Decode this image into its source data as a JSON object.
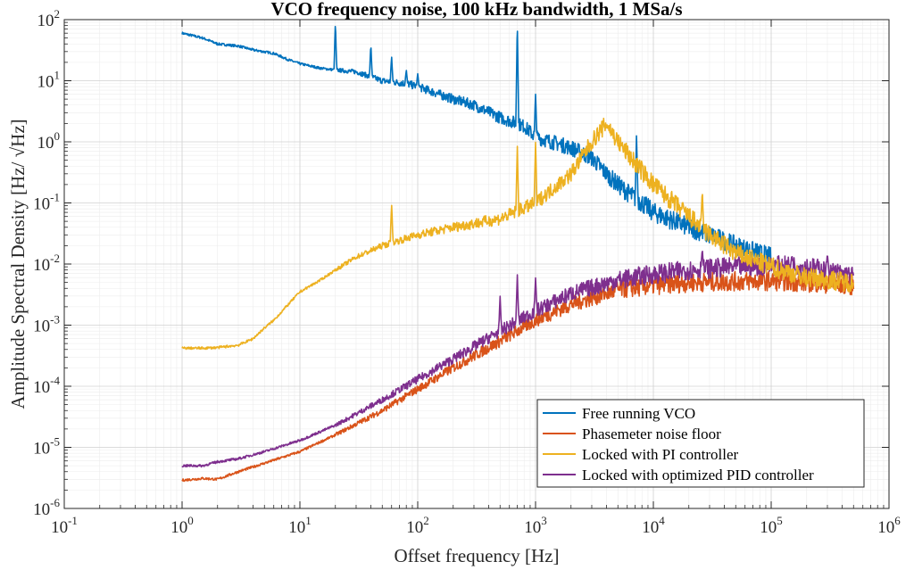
{
  "chart_data": {
    "type": "line",
    "title": "VCO frequency noise, 100 kHz bandwidth, 1 MSa/s",
    "xlabel": "Offset frequency [Hz]",
    "ylabel": "Amplitude Spectral Density [Hz/ √Hz]",
    "xscale": "log",
    "yscale": "log",
    "xlim": [
      0.1,
      1000000
    ],
    "ylim": [
      1e-06,
      100
    ],
    "grid": true,
    "legend_position": "bottom-right",
    "x_tick_labels": [
      "10^-1",
      "10^0",
      "10^1",
      "10^2",
      "10^3",
      "10^4",
      "10^5",
      "10^6"
    ],
    "y_tick_labels": [
      "10^-6",
      "10^-5",
      "10^-4",
      "10^-3",
      "10^-2",
      "10^-1",
      "10^0",
      "10^1",
      "10^2"
    ],
    "series": [
      {
        "name": "Free running VCO",
        "color": "#0072BD",
        "x": [
          1,
          1.5,
          2,
          3,
          4,
          6,
          8,
          10,
          15,
          20,
          30,
          50,
          80,
          100,
          200,
          300,
          500,
          800,
          1000,
          2000,
          3000,
          4000,
          5000,
          6000,
          7000,
          8000,
          10000,
          20000,
          30000,
          50000,
          100000
        ],
        "y": [
          60,
          50,
          40,
          37,
          32,
          28,
          22,
          19,
          16,
          15,
          14,
          10,
          9,
          8,
          5,
          4,
          2.5,
          1.8,
          1.2,
          0.8,
          0.55,
          0.3,
          0.2,
          0.15,
          0.12,
          0.1,
          0.07,
          0.04,
          0.03,
          0.02,
          0.013
        ],
        "spikes": [
          [
            20,
            90
          ],
          [
            40,
            40
          ],
          [
            60,
            25
          ],
          [
            80,
            15
          ],
          [
            100,
            13
          ],
          [
            700,
            100
          ],
          [
            1000,
            6
          ],
          [
            7200,
            1.3
          ]
        ]
      },
      {
        "name": "Phasemeter noise floor",
        "color": "#D95319",
        "x": [
          1,
          1.5,
          2,
          3,
          5,
          10,
          20,
          50,
          100,
          200,
          500,
          1000,
          2000,
          5000,
          10000,
          20000,
          50000,
          100000,
          200000,
          500000
        ],
        "y": [
          2.9e-06,
          3.1e-06,
          3e-06,
          4e-06,
          5.5e-06,
          8.5e-06,
          1.6e-05,
          4e-05,
          9e-05,
          0.0002,
          0.00055,
          0.0012,
          0.0022,
          0.0038,
          0.0045,
          0.005,
          0.0052,
          0.0053,
          0.005,
          0.0045
        ]
      },
      {
        "name": "Locked with PI controller",
        "color": "#EDB120",
        "x": [
          1,
          1.5,
          2,
          3,
          4,
          5,
          6,
          8,
          10,
          15,
          20,
          30,
          50,
          100,
          200,
          500,
          1000,
          2000,
          3000,
          4000,
          5000,
          7000,
          10000,
          20000,
          30000,
          50000,
          100000,
          200000,
          500000
        ],
        "y": [
          0.00042,
          0.00042,
          0.00043,
          0.00047,
          0.0006,
          0.0009,
          0.0012,
          0.0022,
          0.0035,
          0.0055,
          0.008,
          0.013,
          0.02,
          0.03,
          0.04,
          0.055,
          0.1,
          0.3,
          1.0,
          2.0,
          1.0,
          0.45,
          0.2,
          0.06,
          0.03,
          0.015,
          0.009,
          0.006,
          0.005
        ],
        "spikes": [
          [
            60,
            0.1
          ],
          [
            700,
            0.9
          ],
          [
            1000,
            1.0
          ],
          [
            26000,
            0.17
          ]
        ]
      },
      {
        "name": "Locked with optimized PID controller",
        "color": "#7E2F8E",
        "x": [
          1,
          1.5,
          2,
          3,
          5,
          10,
          20,
          50,
          100,
          200,
          500,
          1000,
          2000,
          5000,
          10000,
          20000,
          50000,
          100000,
          200000,
          500000
        ],
        "y": [
          5e-06,
          5e-06,
          5.8e-06,
          6.5e-06,
          8.5e-06,
          1.3e-05,
          2.3e-05,
          6e-05,
          0.00013,
          0.00028,
          0.0008,
          0.0017,
          0.0033,
          0.0055,
          0.0068,
          0.008,
          0.009,
          0.0095,
          0.0092,
          0.0063
        ],
        "spikes": [
          [
            500,
            0.003
          ],
          [
            700,
            0.007
          ],
          [
            1000,
            0.006
          ],
          [
            26000,
            0.018
          ],
          [
            150000,
            0.014
          ],
          [
            300000,
            0.015
          ]
        ]
      }
    ]
  }
}
